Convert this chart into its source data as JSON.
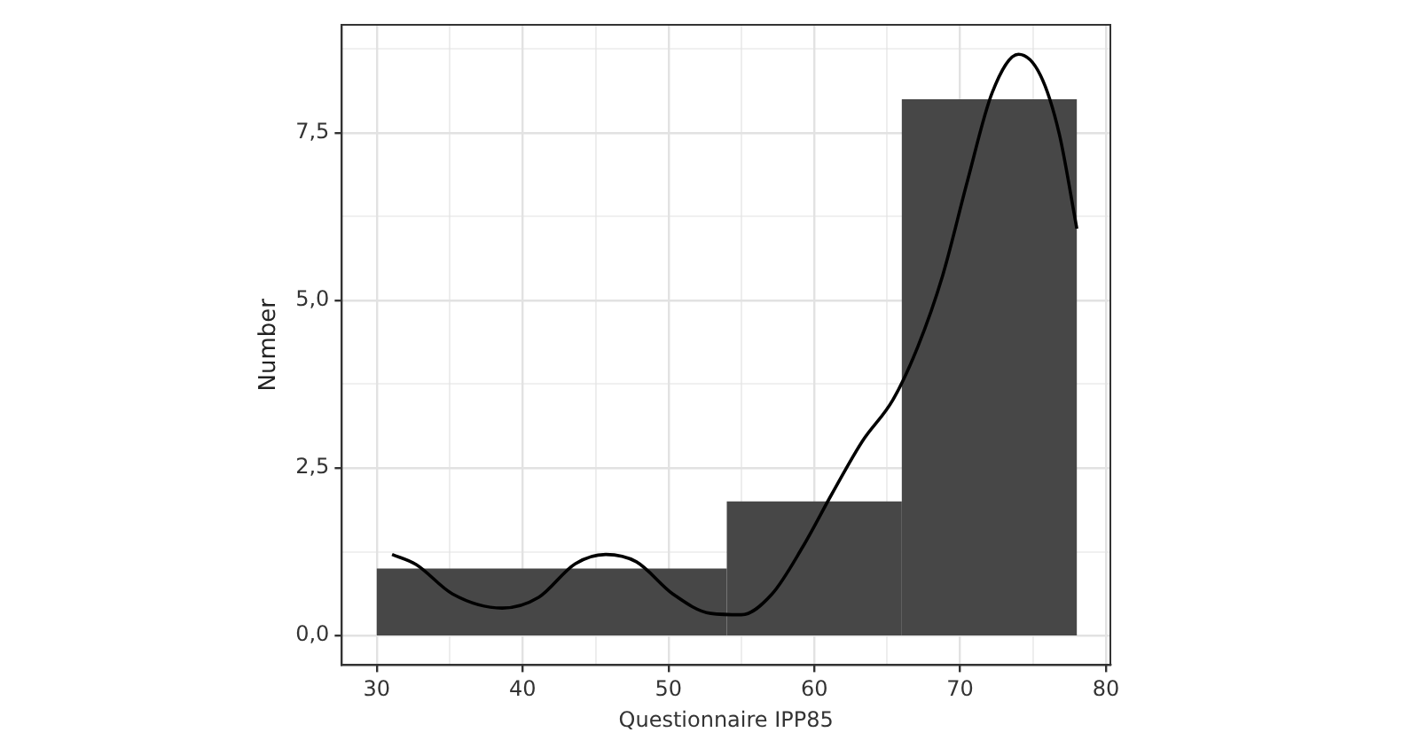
{
  "chart_data": {
    "type": "histogram",
    "xlabel": "Questionnaire IPP85",
    "ylabel": "Number",
    "bins": [
      30,
      54,
      66,
      78
    ],
    "values": [
      1,
      2,
      8
    ],
    "color": "#474747",
    "xlim": [
      27.6,
      80.3
    ],
    "ylim": [
      -0.44,
      9.11
    ],
    "xticks": [
      30,
      {
        "value": 35,
        "label": null
      },
      40,
      {
        "value": 45,
        "label": null
      },
      50,
      {
        "value": 55,
        "label": null
      },
      60,
      {
        "value": 65,
        "label": null
      },
      70,
      {
        "value": 75,
        "label": null
      },
      80
    ],
    "yticks": [
      {
        "value": 0,
        "label": "0,0"
      },
      {
        "value": 1.25,
        "label": null
      },
      {
        "value": 2.5,
        "label": "2,5"
      },
      {
        "value": 3.75,
        "label": null
      },
      {
        "value": 5,
        "label": "5,0"
      },
      {
        "value": 6.25,
        "label": null
      },
      {
        "value": 7.5,
        "label": "7,5"
      },
      {
        "value": 8.75,
        "label": null
      }
    ],
    "grid": true,
    "series": [
      {
        "type": "line",
        "color": "#000000",
        "x": [
          31.05,
          32.7,
          35.2,
          38.6,
          41.1,
          43.6,
          45.7,
          47.8,
          50.3,
          52.9,
          55.0,
          57.1,
          59.2,
          61.2,
          63.3,
          65.4,
          67.1,
          68.8,
          70.5,
          72.2,
          74.0,
          75.5,
          76.8,
          78.0
        ],
        "values": [
          1.21,
          1.06,
          0.62,
          0.41,
          0.57,
          1.07,
          1.21,
          1.1,
          0.62,
          0.33,
          0.31,
          0.62,
          1.32,
          2.11,
          2.9,
          3.52,
          4.31,
          5.37,
          6.78,
          8.1,
          8.67,
          8.36,
          7.48,
          6.07
        ]
      }
    ]
  }
}
